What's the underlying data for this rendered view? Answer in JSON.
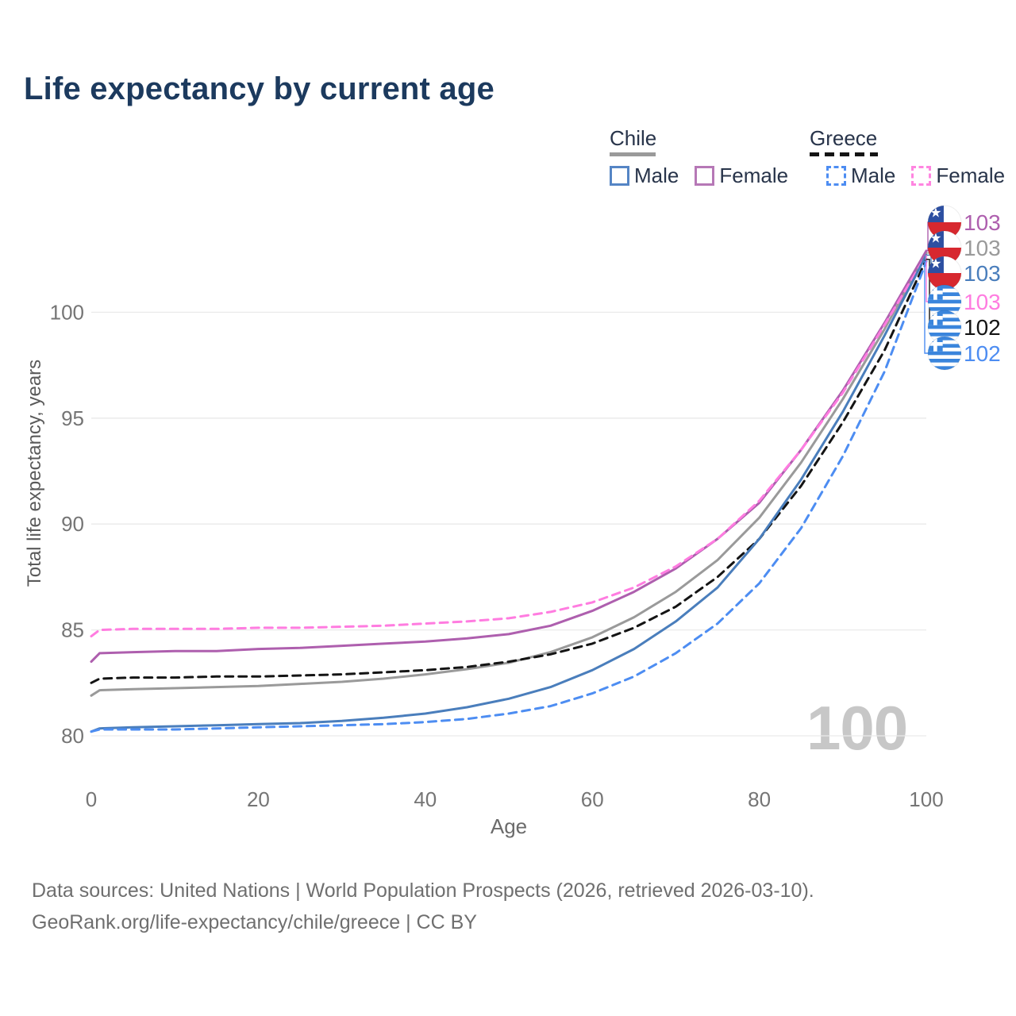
{
  "page": {
    "title": "Life expectancy by current age",
    "watermark": "100"
  },
  "legend": {
    "groups": [
      {
        "label": "Chile",
        "underline_style": "solid",
        "underline_color": "#9a9a9a",
        "items": [
          {
            "label": "Male",
            "color": "#5585c5",
            "dashed": false
          },
          {
            "label": "Female",
            "color": "#b678b6",
            "dashed": false
          }
        ]
      },
      {
        "label": "Greece",
        "underline_style": "dashed",
        "underline_color": "#141414",
        "items": [
          {
            "label": "Male",
            "color": "#4d8df2",
            "dashed": true
          },
          {
            "label": "Female",
            "color": "#ff85e0",
            "dashed": true
          }
        ]
      }
    ]
  },
  "chart_data": {
    "type": "line",
    "title": "Life expectancy by current age",
    "xlabel": "Age",
    "ylabel": "Total life expectancy, years",
    "xlim": [
      0,
      100
    ],
    "ylim": [
      78.5,
      104
    ],
    "xticks": [
      0,
      20,
      40,
      60,
      80,
      100
    ],
    "yticks": [
      80,
      85,
      90,
      95,
      100
    ],
    "grid": "horizontal",
    "legend_position": "top-right",
    "x": [
      0,
      1,
      5,
      10,
      15,
      20,
      25,
      30,
      35,
      40,
      45,
      50,
      55,
      60,
      65,
      70,
      75,
      80,
      85,
      90,
      95,
      100
    ],
    "series": [
      {
        "id": "chile-all",
        "name": "Chile",
        "sex": "all",
        "color": "#9a9a9a",
        "dashed": false,
        "values": [
          81.9,
          82.15,
          82.2,
          82.25,
          82.3,
          82.35,
          82.45,
          82.55,
          82.7,
          82.9,
          83.15,
          83.45,
          83.95,
          84.65,
          85.6,
          86.8,
          88.3,
          90.3,
          92.9,
          95.9,
          99.2,
          102.8
        ]
      },
      {
        "id": "greece-all",
        "name": "Greece",
        "sex": "all",
        "color": "#141414",
        "dashed": true,
        "values": [
          82.5,
          82.7,
          82.75,
          82.75,
          82.8,
          82.8,
          82.85,
          82.9,
          83.0,
          83.1,
          83.25,
          83.5,
          83.85,
          84.35,
          85.1,
          86.1,
          87.5,
          89.3,
          91.8,
          94.8,
          98.2,
          102.5
        ]
      },
      {
        "id": "chile-female",
        "name": "Chile",
        "sex": "female",
        "color": "#ae5fae",
        "dashed": false,
        "values": [
          83.5,
          83.9,
          83.95,
          84.0,
          84.0,
          84.1,
          84.15,
          84.25,
          84.35,
          84.45,
          84.6,
          84.8,
          85.2,
          85.9,
          86.8,
          87.9,
          89.3,
          91.0,
          93.5,
          96.3,
          99.5,
          102.9
        ]
      },
      {
        "id": "greece-female",
        "name": "Greece",
        "sex": "female",
        "color": "#ff7ce0",
        "dashed": true,
        "values": [
          84.7,
          85.0,
          85.05,
          85.05,
          85.05,
          85.1,
          85.1,
          85.15,
          85.2,
          85.3,
          85.4,
          85.55,
          85.85,
          86.3,
          87.0,
          88.0,
          89.3,
          91.1,
          93.5,
          96.2,
          99.4,
          102.7
        ]
      },
      {
        "id": "chile-male",
        "name": "Chile",
        "sex": "male",
        "color": "#4a7ebc",
        "dashed": false,
        "values": [
          80.2,
          80.35,
          80.4,
          80.45,
          80.5,
          80.55,
          80.6,
          80.7,
          80.85,
          81.05,
          81.35,
          81.75,
          82.3,
          83.1,
          84.1,
          85.4,
          87.0,
          89.3,
          92.1,
          95.3,
          98.9,
          102.7
        ]
      },
      {
        "id": "greece-male",
        "name": "Greece",
        "sex": "male",
        "color": "#4d8df2",
        "dashed": true,
        "values": [
          80.2,
          80.3,
          80.3,
          80.3,
          80.35,
          80.4,
          80.45,
          80.5,
          80.55,
          80.65,
          80.8,
          81.05,
          81.4,
          82.0,
          82.8,
          83.9,
          85.3,
          87.2,
          89.8,
          93.2,
          97.2,
          102.4
        ]
      }
    ],
    "end_labels": [
      {
        "series": "chile-female",
        "flag": "chile",
        "value": "103",
        "color": "#ae5fae"
      },
      {
        "series": "chile-all",
        "flag": "chile",
        "value": "103",
        "color": "#9a9a9a"
      },
      {
        "series": "chile-male",
        "flag": "chile",
        "value": "103",
        "color": "#4a7ebc"
      },
      {
        "series": "greece-female",
        "flag": "greece",
        "value": "103",
        "color": "#ff7ce0"
      },
      {
        "series": "greece-all",
        "flag": "greece",
        "value": "102",
        "color": "#141414"
      },
      {
        "series": "greece-male",
        "flag": "greece",
        "value": "102",
        "color": "#4d8df2"
      }
    ]
  },
  "footer": {
    "line1": "Data sources: United Nations | World Population Prospects (2026, retrieved 2026-03-10).",
    "line2": "GeoRank.org/life-expectancy/chile/greece | CC BY"
  }
}
